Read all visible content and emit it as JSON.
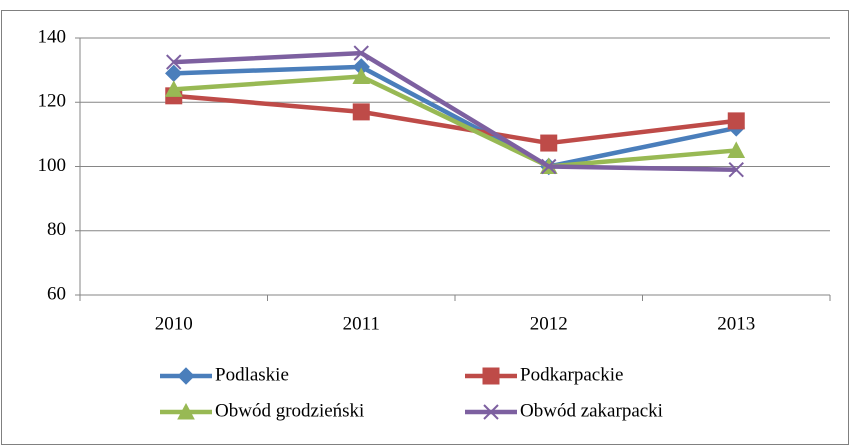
{
  "chart_data": {
    "type": "line",
    "categories": [
      "2010",
      "2011",
      "2012",
      "2013"
    ],
    "series": [
      {
        "name": "Podlaskie",
        "color": "#4a7ebb",
        "marker": "diamond",
        "values": [
          129,
          131,
          100,
          112
        ]
      },
      {
        "name": "Podkarpackie",
        "color": "#be4b48",
        "marker": "square",
        "values": [
          122,
          117,
          107.3,
          114.2
        ]
      },
      {
        "name": "Obwód grodzieński",
        "color": "#98b954",
        "marker": "triangle",
        "values": [
          124,
          128,
          100,
          105
        ]
      },
      {
        "name": "Obwód zakarpacki",
        "color": "#7d60a0",
        "marker": "x",
        "values": [
          132.5,
          135.3,
          100,
          99
        ]
      }
    ],
    "ylim": [
      60,
      140
    ],
    "yticks": [
      60,
      80,
      100,
      120,
      140
    ],
    "grid": true,
    "legend": "bottom"
  }
}
